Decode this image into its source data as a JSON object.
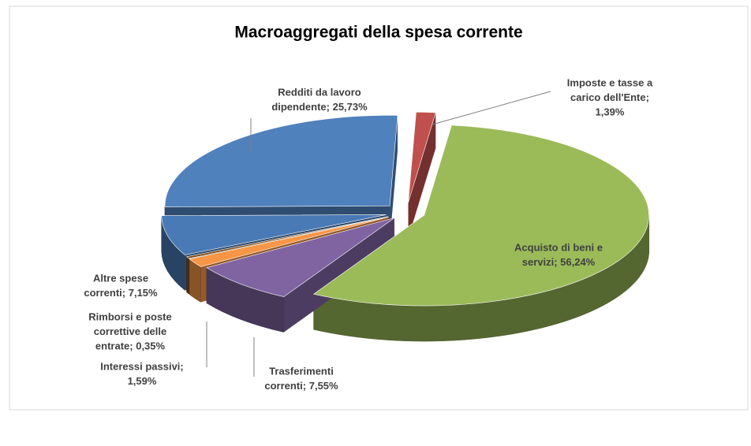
{
  "chart_data": {
    "type": "pie3d",
    "title": "Macroaggregati della spesa corrente",
    "values": [
      1.39,
      56.24,
      7.55,
      1.59,
      0.35,
      7.15,
      25.73
    ],
    "value_labels": [
      [
        "Imposte e tasse a",
        "carico dell'Ente;",
        "1,39%"
      ],
      [
        "Acquisto di beni e",
        "servizi; 56,24%"
      ],
      [
        "Trasferimenti",
        "correnti; 7,55%"
      ],
      [
        "Interessi passivi;",
        "1,59%"
      ],
      [
        "Rimborsi e poste",
        "correttive delle",
        "entrate; 0,35%"
      ],
      [
        "Altre spese",
        "correnti; 7,15%"
      ],
      [
        "Redditi da lavoro",
        "dipendente; 25,73%"
      ]
    ],
    "colors": [
      "#c0504d",
      "#9bbb59",
      "#8064a2",
      "#f79646",
      "#7f4f1f",
      "#4a7ab5",
      "#4f81bd"
    ]
  }
}
